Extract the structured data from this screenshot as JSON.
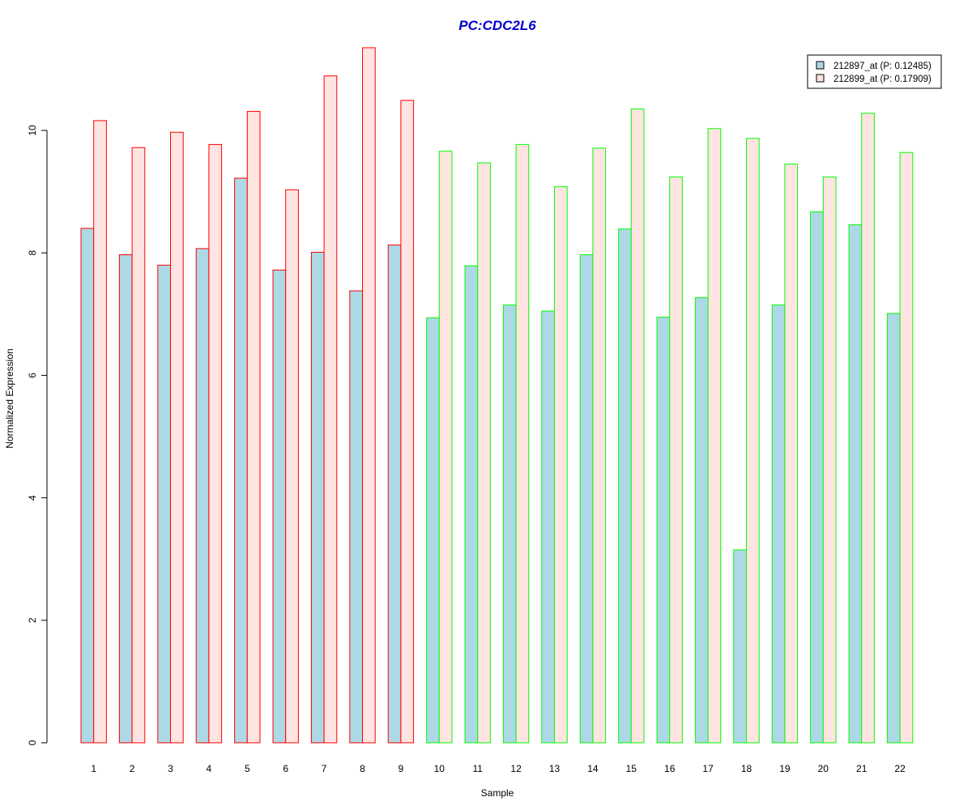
{
  "chart_data": {
    "type": "bar",
    "title": "PC:CDC2L6",
    "xlabel": "Sample",
    "ylabel": "Normalized Expression",
    "ylim": [
      0,
      11.3
    ],
    "yticks": [
      0,
      2,
      4,
      6,
      8,
      10
    ],
    "grid": false,
    "legend_position": "top-right",
    "categories": [
      "1",
      "2",
      "3",
      "4",
      "5",
      "6",
      "7",
      "8",
      "9",
      "10",
      "11",
      "12",
      "13",
      "14",
      "15",
      "16",
      "17",
      "18",
      "19",
      "20",
      "21",
      "22"
    ],
    "series": [
      {
        "name": "212897_at (P: 0.12485)",
        "fill": "#add8e6",
        "values": [
          8.4,
          7.97,
          7.8,
          8.07,
          9.22,
          7.72,
          8.01,
          7.38,
          8.13,
          6.94,
          7.79,
          7.15,
          7.05,
          7.97,
          8.39,
          6.95,
          7.27,
          3.15,
          7.15,
          8.67,
          8.46,
          7.01
        ]
      },
      {
        "name": "212899_at (P: 0.17909)",
        "fill": "#ffe4e1",
        "values": [
          10.16,
          9.72,
          9.97,
          9.77,
          10.31,
          9.03,
          10.89,
          11.35,
          10.49,
          9.66,
          9.47,
          9.77,
          9.08,
          9.71,
          10.35,
          9.24,
          10.03,
          9.87,
          9.45,
          9.24,
          10.28,
          9.64
        ]
      }
    ],
    "group_border_colors": [
      "#ff0000",
      "#ff0000",
      "#ff0000",
      "#ff0000",
      "#ff0000",
      "#ff0000",
      "#ff0000",
      "#ff0000",
      "#ff0000",
      "#00ff00",
      "#00ff00",
      "#00ff00",
      "#00ff00",
      "#00ff00",
      "#00ff00",
      "#00ff00",
      "#00ff00",
      "#00ff00",
      "#00ff00",
      "#00ff00",
      "#00ff00",
      "#00ff00"
    ],
    "colors": {
      "title": "#0000cd",
      "axis": "#000000"
    }
  }
}
